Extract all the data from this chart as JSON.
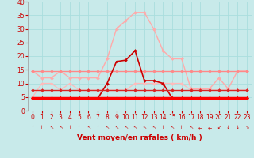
{
  "background_color": "#c8eaea",
  "grid_color": "#aadddd",
  "xlim": [
    -0.5,
    23.5
  ],
  "ylim": [
    0,
    40
  ],
  "xticks": [
    0,
    1,
    2,
    3,
    4,
    5,
    6,
    7,
    8,
    9,
    10,
    11,
    12,
    13,
    14,
    15,
    16,
    17,
    18,
    19,
    20,
    21,
    22,
    23
  ],
  "yticks": [
    0,
    5,
    10,
    15,
    20,
    25,
    30,
    35,
    40
  ],
  "xlabel": "Vent moyen/en rafales ( km/h )",
  "tick_color": "#cc0000",
  "tick_fontsize": 5.5,
  "xlabel_fontsize": 6.5,
  "series": [
    {
      "comment": "light pink - rafales high arc",
      "color": "#ffaaaa",
      "lw": 1.0,
      "marker": "D",
      "ms": 2.0,
      "y": [
        14.5,
        12,
        12,
        14.5,
        12,
        12,
        12,
        12,
        19,
        30,
        33,
        36,
        36,
        30,
        22,
        19,
        19,
        8,
        8,
        8,
        12,
        8,
        14.5,
        14.5
      ]
    },
    {
      "comment": "medium pink flat at 14.5",
      "color": "#ff8888",
      "lw": 1.0,
      "marker": "D",
      "ms": 2.0,
      "y": [
        14.5,
        14.5,
        14.5,
        14.5,
        14.5,
        14.5,
        14.5,
        14.5,
        14.5,
        14.5,
        14.5,
        14.5,
        14.5,
        14.5,
        14.5,
        14.5,
        14.5,
        14.5,
        14.5,
        14.5,
        14.5,
        14.5,
        14.5,
        14.5
      ]
    },
    {
      "comment": "light pink low - moyen low",
      "color": "#ffbbbb",
      "lw": 0.9,
      "marker": "D",
      "ms": 2.0,
      "y": [
        5,
        10,
        10,
        7.5,
        10,
        7.5,
        7.5,
        7.5,
        7.5,
        7.5,
        7.5,
        10,
        10,
        10,
        10,
        10,
        10,
        7.5,
        7.5,
        7.5,
        7.5,
        7.5,
        7.5,
        7.5
      ]
    },
    {
      "comment": "dark red - moyen variable arc",
      "color": "#cc0000",
      "lw": 1.2,
      "marker": "D",
      "ms": 2.0,
      "y": [
        4.5,
        4.5,
        4.5,
        4.5,
        4.5,
        4.5,
        4.5,
        4.5,
        10,
        18,
        18.5,
        22,
        11,
        11,
        10,
        4.5,
        4.5,
        4.5,
        4.5,
        4.5,
        4.5,
        4.5,
        4.5,
        4.5
      ]
    },
    {
      "comment": "bright red thick flat at 5",
      "color": "#ff0000",
      "lw": 2.5,
      "marker": "D",
      "ms": 2.0,
      "y": [
        4.5,
        4.5,
        4.5,
        4.5,
        4.5,
        4.5,
        4.5,
        4.5,
        4.5,
        4.5,
        4.5,
        4.5,
        4.5,
        4.5,
        4.5,
        4.5,
        4.5,
        4.5,
        4.5,
        4.5,
        4.5,
        4.5,
        4.5,
        4.5
      ]
    },
    {
      "comment": "dark red flat at 7.5",
      "color": "#dd2222",
      "lw": 1.0,
      "marker": "D",
      "ms": 2.0,
      "y": [
        7.5,
        7.5,
        7.5,
        7.5,
        7.5,
        7.5,
        7.5,
        7.5,
        7.5,
        7.5,
        7.5,
        7.5,
        7.5,
        7.5,
        7.5,
        7.5,
        7.5,
        7.5,
        7.5,
        7.5,
        7.5,
        7.5,
        7.5,
        7.5
      ]
    }
  ],
  "wind_arrows": [
    "↑",
    "↑",
    "↖",
    "↖",
    "↑",
    "↑",
    "↖",
    "↑",
    "↖",
    "↖",
    "↖",
    "↖",
    "↖",
    "↖",
    "↑",
    "↖",
    "↑",
    "↖",
    "←",
    "←",
    "↙",
    "↓",
    "↓",
    "↘"
  ]
}
